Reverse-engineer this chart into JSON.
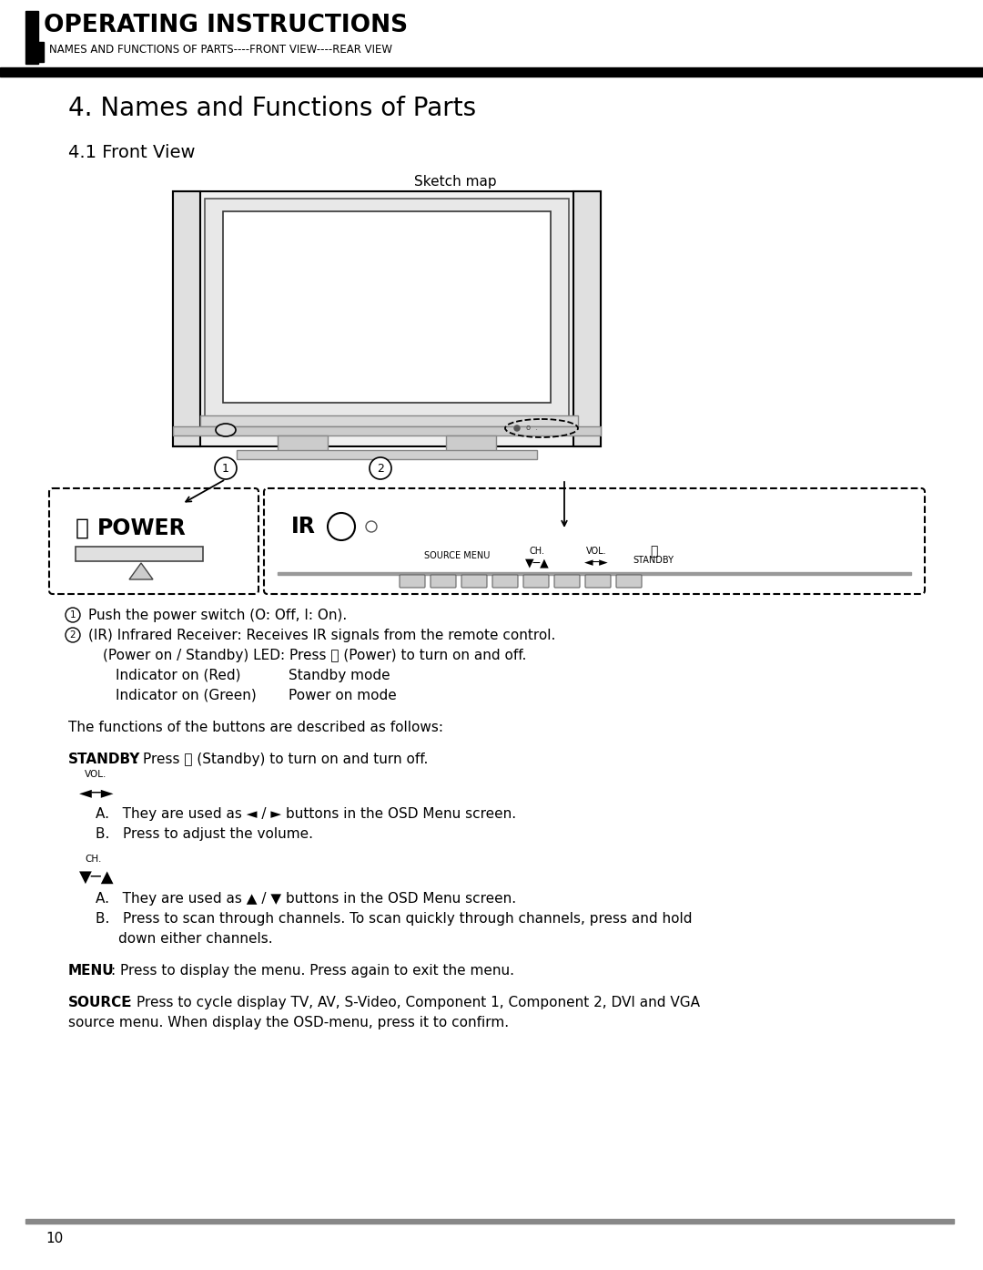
{
  "page_bg": "#ffffff",
  "header_title": "OPERATING INSTRUCTIONS",
  "header_subtitle": "NAMES AND FUNCTIONS OF PARTS----FRONT VIEW----REAR VIEW",
  "section_title": "4. Names and Functions of Parts",
  "subsection_title": "4.1 Front View",
  "sketch_label": "Sketch map",
  "footer_text": "10"
}
